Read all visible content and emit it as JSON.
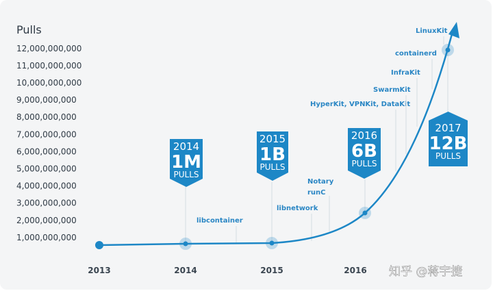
{
  "chart_data": {
    "type": "line",
    "ylabel": "Pulls",
    "y_ticks": [
      "1,000,000,000",
      "2,000,000,000",
      "3,000,000,000",
      "4,000,000,000",
      "5,000,000,000",
      "6,000,000,000",
      "7,000,000,000",
      "8,000,000,000",
      "9,000,000,000",
      "10,000,000,000",
      "11,000,000,000",
      "12,000,000,000"
    ],
    "x_ticks": [
      "2013",
      "2014",
      "2015",
      "2016"
    ],
    "ylim": [
      0,
      12000000000
    ],
    "grid": false,
    "color": "#1d87c6",
    "milestones": [
      {
        "year": "2014",
        "value": "1M",
        "unit": "PULLS"
      },
      {
        "year": "2015",
        "value": "1B",
        "unit": "PULLS"
      },
      {
        "year": "2016",
        "value": "6B",
        "unit": "PULLS"
      },
      {
        "year": "2017",
        "value": "12B",
        "unit": "PULLS"
      }
    ],
    "annotations": [
      "libcontainer",
      "libnetwork",
      "Notary",
      "runC",
      "HyperKit, VPNKit, DataKit",
      "SwarmKit",
      "InfraKit",
      "containerd",
      "LinuxKit"
    ]
  },
  "watermark": "知乎 @蒋宇捷"
}
